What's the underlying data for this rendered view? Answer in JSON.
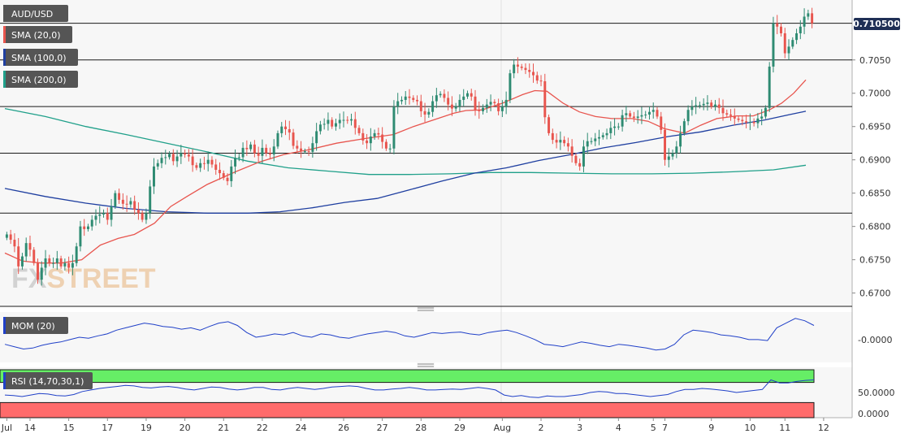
{
  "chart_data": {
    "type": "candlestick",
    "symbol": "AUD/USD",
    "last_price": "0.710500",
    "watermark": {
      "part1": "FX",
      "part2": "STREET"
    },
    "colors": {
      "up": "#2e8b72",
      "down": "#e8554e",
      "sma20": "#e8554e",
      "sma100": "#1f3fa0",
      "sma200": "#20a08a",
      "mom": "#2040c8",
      "rsi": "#2040c8",
      "rsi_upper_fill": "#66ee66",
      "rsi_lower_fill": "#ff6b6b",
      "label_bg": "#555555",
      "price_tag_bg": "#1f2f55"
    },
    "ylim": [
      0.668,
      0.714
    ],
    "y_ticks": [
      "0.6700",
      "0.6750",
      "0.6800",
      "0.6850",
      "0.6900",
      "0.6950",
      "0.7000",
      "0.7050"
    ],
    "horizontal_levels": [
      0.7105,
      0.705,
      0.698,
      0.691,
      0.682,
      0.668
    ],
    "x_labels": [
      {
        "i": 0,
        "label": "Jul"
      },
      {
        "i": 6,
        "label": "14"
      },
      {
        "i": 16,
        "label": "15"
      },
      {
        "i": 26,
        "label": "17"
      },
      {
        "i": 36,
        "label": "19"
      },
      {
        "i": 46,
        "label": "20"
      },
      {
        "i": 56,
        "label": "21"
      },
      {
        "i": 66,
        "label": "22"
      },
      {
        "i": 76,
        "label": "24"
      },
      {
        "i": 87,
        "label": "26"
      },
      {
        "i": 97,
        "label": "27"
      },
      {
        "i": 107,
        "label": "28"
      },
      {
        "i": 117,
        "label": "29"
      },
      {
        "i": 128,
        "label": "Aug"
      },
      {
        "i": 138,
        "label": "2"
      },
      {
        "i": 148,
        "label": "3"
      },
      {
        "i": 158,
        "label": "4"
      },
      {
        "i": 167,
        "label": "5"
      },
      {
        "i": 170,
        "label": "7"
      },
      {
        "i": 182,
        "label": "9"
      },
      {
        "i": 192,
        "label": "10"
      },
      {
        "i": 201,
        "label": "11"
      },
      {
        "i": 211,
        "label": "12"
      }
    ],
    "closes": [
      0.6788,
      0.678,
      0.677,
      0.674,
      0.6755,
      0.6775,
      0.6765,
      0.6745,
      0.672,
      0.6738,
      0.6752,
      0.6745,
      0.6745,
      0.6752,
      0.674,
      0.6745,
      0.6738,
      0.6745,
      0.677,
      0.68,
      0.6796,
      0.68,
      0.681,
      0.6816,
      0.6818,
      0.682,
      0.681,
      0.683,
      0.685,
      0.684,
      0.6834,
      0.6833,
      0.6838,
      0.6825,
      0.682,
      0.681,
      0.682,
      0.686,
      0.689,
      0.6895,
      0.6903,
      0.6904,
      0.6909,
      0.6898,
      0.6905,
      0.691,
      0.6908,
      0.6905,
      0.6892,
      0.6888,
      0.6895,
      0.6894,
      0.69,
      0.6893,
      0.6885,
      0.688,
      0.6873,
      0.6868,
      0.689,
      0.6903,
      0.6904,
      0.6918,
      0.6916,
      0.6923,
      0.691,
      0.6906,
      0.6918,
      0.691,
      0.6908,
      0.692,
      0.694,
      0.695,
      0.6946,
      0.6941,
      0.6921,
      0.6917,
      0.6913,
      0.6913,
      0.6912,
      0.6925,
      0.6943,
      0.6953,
      0.6954,
      0.696,
      0.695,
      0.6955,
      0.696,
      0.696,
      0.6959,
      0.6961,
      0.6948,
      0.694,
      0.6929,
      0.6925,
      0.6935,
      0.694,
      0.6938,
      0.6927,
      0.6917,
      0.6917,
      0.698,
      0.6988,
      0.699,
      0.6995,
      0.6993,
      0.699,
      0.6988,
      0.6973,
      0.6968,
      0.6972,
      0.6988,
      0.6997,
      0.6999,
      0.6993,
      0.6983,
      0.6977,
      0.698,
      0.699,
      0.6995,
      0.7,
      0.6995,
      0.6975,
      0.6973,
      0.6978,
      0.6983,
      0.6987,
      0.6985,
      0.6973,
      0.698,
      0.699,
      0.703,
      0.7043,
      0.704,
      0.7038,
      0.7035,
      0.7032,
      0.7027,
      0.7019,
      0.7018,
      0.6964,
      0.694,
      0.693,
      0.6926,
      0.693,
      0.6925,
      0.692,
      0.6906,
      0.6895,
      0.689,
      0.692,
      0.6928,
      0.6928,
      0.6932,
      0.6934,
      0.6937,
      0.694,
      0.6948,
      0.695,
      0.695,
      0.6967,
      0.697,
      0.6965,
      0.6963,
      0.6965,
      0.6967,
      0.6968,
      0.6972,
      0.6975,
      0.6965,
      0.6945,
      0.69,
      0.6905,
      0.691,
      0.692,
      0.694,
      0.6958,
      0.6975,
      0.698,
      0.6982,
      0.6982,
      0.6984,
      0.6986,
      0.698,
      0.6983,
      0.6978,
      0.697,
      0.6968,
      0.6966,
      0.6962,
      0.696,
      0.6958,
      0.6956,
      0.6957,
      0.6955,
      0.6962,
      0.6965,
      0.6978,
      0.704,
      0.7105,
      0.71,
      0.709,
      0.706,
      0.707,
      0.708,
      0.709,
      0.71,
      0.7115,
      0.712,
      0.7105
    ],
    "sma20": [
      [
        0.0,
        0.676
      ],
      [
        0.022,
        0.6748
      ],
      [
        0.045,
        0.6745
      ],
      [
        0.07,
        0.6745
      ],
      [
        0.095,
        0.675
      ],
      [
        0.118,
        0.6772
      ],
      [
        0.14,
        0.6782
      ],
      [
        0.16,
        0.6788
      ],
      [
        0.185,
        0.6805
      ],
      [
        0.205,
        0.683
      ],
      [
        0.225,
        0.6845
      ],
      [
        0.25,
        0.6863
      ],
      [
        0.285,
        0.6882
      ],
      [
        0.315,
        0.6897
      ],
      [
        0.345,
        0.6908
      ],
      [
        0.375,
        0.6915
      ],
      [
        0.41,
        0.6925
      ],
      [
        0.445,
        0.6932
      ],
      [
        0.48,
        0.6938
      ],
      [
        0.505,
        0.695
      ],
      [
        0.53,
        0.696
      ],
      [
        0.555,
        0.697
      ],
      [
        0.57,
        0.6974
      ],
      [
        0.59,
        0.6975
      ],
      [
        0.615,
        0.6985
      ],
      [
        0.64,
        0.6998
      ],
      [
        0.655,
        0.7004
      ],
      [
        0.67,
        0.7003
      ],
      [
        0.69,
        0.6985
      ],
      [
        0.71,
        0.6972
      ],
      [
        0.73,
        0.6965
      ],
      [
        0.75,
        0.6962
      ],
      [
        0.775,
        0.6962
      ],
      [
        0.795,
        0.6958
      ],
      [
        0.815,
        0.6947
      ],
      [
        0.84,
        0.694
      ],
      [
        0.86,
        0.6952
      ],
      [
        0.88,
        0.6962
      ],
      [
        0.905,
        0.6966
      ],
      [
        0.925,
        0.6966
      ],
      [
        0.945,
        0.6975
      ],
      [
        0.96,
        0.6985
      ],
      [
        0.975,
        0.7
      ],
      [
        0.99,
        0.702
      ]
    ],
    "sma100": [
      [
        0.0,
        0.6857
      ],
      [
        0.05,
        0.6845
      ],
      [
        0.1,
        0.6835
      ],
      [
        0.15,
        0.6827
      ],
      [
        0.2,
        0.6822
      ],
      [
        0.25,
        0.682
      ],
      [
        0.3,
        0.682
      ],
      [
        0.34,
        0.6822
      ],
      [
        0.38,
        0.6828
      ],
      [
        0.42,
        0.6836
      ],
      [
        0.46,
        0.6842
      ],
      [
        0.5,
        0.6855
      ],
      [
        0.54,
        0.6868
      ],
      [
        0.58,
        0.688
      ],
      [
        0.62,
        0.6888
      ],
      [
        0.66,
        0.6899
      ],
      [
        0.7,
        0.6908
      ],
      [
        0.74,
        0.6918
      ],
      [
        0.78,
        0.6926
      ],
      [
        0.82,
        0.6935
      ],
      [
        0.86,
        0.6942
      ],
      [
        0.9,
        0.6952
      ],
      [
        0.94,
        0.696
      ],
      [
        0.97,
        0.6968
      ],
      [
        0.99,
        0.6973
      ]
    ],
    "sma200": [
      [
        0.0,
        0.6977
      ],
      [
        0.05,
        0.6965
      ],
      [
        0.1,
        0.695
      ],
      [
        0.15,
        0.6938
      ],
      [
        0.2,
        0.6925
      ],
      [
        0.25,
        0.6912
      ],
      [
        0.3,
        0.6898
      ],
      [
        0.35,
        0.6888
      ],
      [
        0.4,
        0.6883
      ],
      [
        0.45,
        0.6878
      ],
      [
        0.5,
        0.6878
      ],
      [
        0.55,
        0.6879
      ],
      [
        0.6,
        0.6881
      ],
      [
        0.65,
        0.6881
      ],
      [
        0.7,
        0.688
      ],
      [
        0.75,
        0.6879
      ],
      [
        0.8,
        0.6879
      ],
      [
        0.85,
        0.688
      ],
      [
        0.9,
        0.6882
      ],
      [
        0.95,
        0.6885
      ],
      [
        0.99,
        0.6892
      ]
    ],
    "indicators": {
      "mom": {
        "label": "MOM (20)",
        "tick": "-0.0000",
        "ylim": [
          -0.0045,
          0.0055
        ],
        "values": [
          -0.001,
          -0.0015,
          -0.002,
          -0.0018,
          -0.0012,
          -0.0008,
          -0.0005,
          0.0,
          0.0005,
          0.0003,
          0.0008,
          0.0012,
          0.002,
          0.0025,
          0.003,
          0.0035,
          0.0032,
          0.0028,
          0.0026,
          0.0022,
          0.0025,
          0.002,
          0.0028,
          0.0035,
          0.0038,
          0.003,
          0.0015,
          0.0005,
          0.0008,
          0.0012,
          0.001,
          0.0015,
          0.0008,
          0.0005,
          0.0012,
          0.001,
          0.0005,
          0.0003,
          0.0008,
          0.0012,
          0.0015,
          0.0018,
          0.0015,
          0.0008,
          0.0005,
          0.001,
          0.0015,
          0.0013,
          0.0015,
          0.0016,
          0.0012,
          0.001,
          0.0015,
          0.0018,
          0.002,
          0.0015,
          0.0008,
          0.0,
          -0.001,
          -0.0012,
          -0.0015,
          -0.001,
          -0.0005,
          -0.0008,
          -0.0012,
          -0.0015,
          -0.001,
          -0.0012,
          -0.0015,
          -0.0018,
          -0.0022,
          -0.002,
          -0.001,
          0.001,
          0.002,
          0.0018,
          0.0015,
          0.001,
          0.0008,
          0.0005,
          0.0,
          0.0,
          -0.0002,
          0.0025,
          0.0035,
          0.0045,
          0.004,
          0.003
        ]
      },
      "rsi": {
        "label": "RSI (14,70,30,1)",
        "tick": "50.0000",
        "zero_tick": "0.0000",
        "ylim": [
          0,
          100
        ],
        "upper": 70,
        "lower": 30,
        "values": [
          45,
          44,
          42,
          45,
          48,
          47,
          44,
          43,
          46,
          52,
          55,
          58,
          60,
          62,
          64,
          63,
          60,
          59,
          61,
          62,
          60,
          57,
          55,
          58,
          61,
          60,
          57,
          55,
          57,
          60,
          60,
          56,
          55,
          58,
          60,
          58,
          56,
          58,
          61,
          62,
          63,
          62,
          58,
          55,
          55,
          57,
          58,
          60,
          58,
          55,
          55,
          56,
          57,
          56,
          58,
          60,
          58,
          55,
          45,
          42,
          44,
          41,
          40,
          43,
          42,
          42,
          44,
          46,
          50,
          52,
          51,
          48,
          48,
          46,
          44,
          42,
          44,
          46,
          52,
          56,
          56,
          58,
          57,
          55,
          53,
          50,
          52,
          54,
          56,
          75,
          69,
          69,
          72,
          74,
          75
        ]
      }
    },
    "legend": {
      "sma20": "SMA (20,0)",
      "sma100": "SMA (100,0)",
      "sma200": "SMA (200,0)"
    }
  }
}
